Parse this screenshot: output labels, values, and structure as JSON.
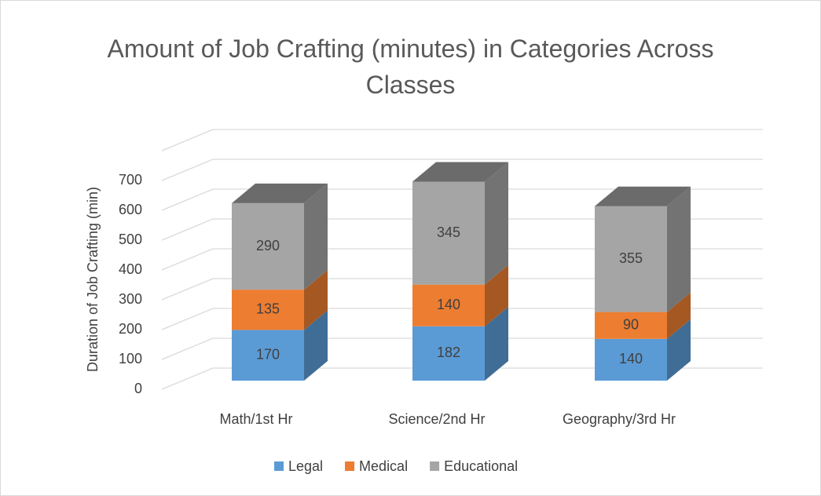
{
  "chart_data": {
    "type": "bar3d_stacked",
    "title": "Amount of Job Crafting (minutes) in Categories Across Classes",
    "y_label": "Duration of Job Crafting (min)",
    "categories": [
      "Math/1st Hr",
      "Science/2nd Hr",
      "Geography/3rd Hr"
    ],
    "series": [
      {
        "name": "Legal",
        "color": "#5b9bd5",
        "values": [
          170,
          182,
          140
        ]
      },
      {
        "name": "Medical",
        "color": "#ed7d31",
        "values": [
          135,
          140,
          90
        ]
      },
      {
        "name": "Educational",
        "color": "#a5a5a5",
        "values": [
          290,
          345,
          355
        ]
      }
    ],
    "ylim": [
      0,
      800
    ],
    "yticks": [
      0,
      100,
      200,
      300,
      400,
      500,
      600,
      700
    ],
    "grid": true
  }
}
